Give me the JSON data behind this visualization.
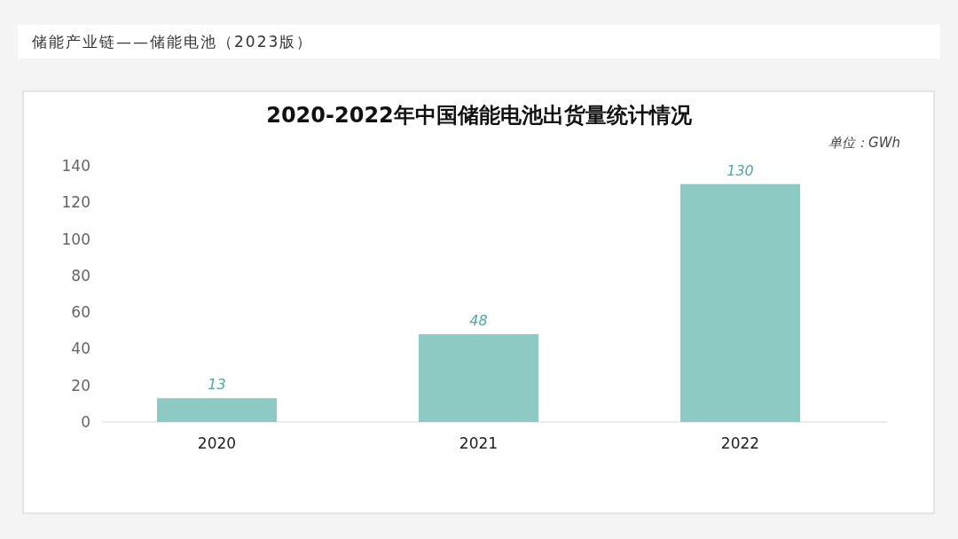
{
  "chart_data": {
    "type": "bar",
    "title": "2020-2022年中国储能电池出货量统计情况",
    "ylabel": "单位：GWh",
    "annotations": [
      "储能产业链——储能电池（2023版）"
    ],
    "categories": [
      "2020",
      "2021",
      "2022"
    ],
    "values": [
      13,
      48,
      130
    ],
    "color": "#8ecac4",
    "ylim": [
      0,
      140
    ],
    "yticks": [
      0,
      20,
      40,
      60,
      80,
      100,
      120,
      140
    ],
    "data_labels": true,
    "grid": false
  }
}
